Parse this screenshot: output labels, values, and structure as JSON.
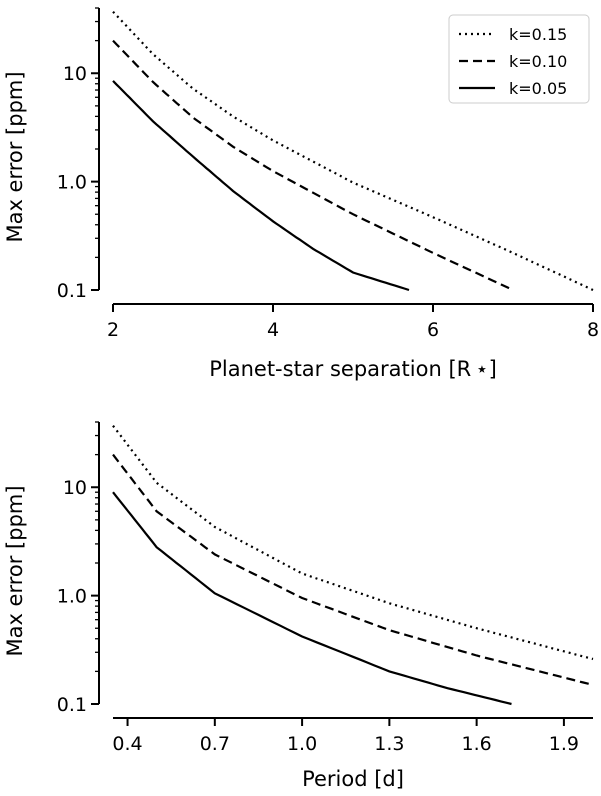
{
  "chart_data": [
    {
      "type": "line",
      "xlabel": "Planet-star separation [R ⋆]",
      "ylabel": "Max error [ppm]",
      "yscale": "log",
      "xlim": [
        2,
        8
      ],
      "ylim": [
        0.1,
        40
      ],
      "xticks": [
        "2",
        "4",
        "6",
        "8"
      ],
      "yticks": [
        "0.1",
        "1.0",
        "10"
      ],
      "legend": "top-right",
      "series": [
        {
          "name": "k=0.15",
          "style": "dotted",
          "x": [
            2,
            2.5,
            3,
            3.5,
            4,
            5,
            6,
            7,
            8
          ],
          "y": [
            37,
            15,
            7.2,
            4.0,
            2.4,
            0.98,
            0.47,
            0.22,
            0.1
          ]
        },
        {
          "name": "k=0.10",
          "style": "dashed",
          "x": [
            2,
            2.5,
            3,
            3.5,
            4,
            5,
            6,
            7
          ],
          "y": [
            20,
            8.3,
            3.9,
            2.1,
            1.25,
            0.5,
            0.22,
            0.1
          ]
        },
        {
          "name": "k=0.05",
          "style": "solid",
          "x": [
            2,
            2.5,
            3,
            3.5,
            4,
            4.5,
            5,
            5.7
          ],
          "y": [
            8.5,
            3.6,
            1.7,
            0.82,
            0.43,
            0.24,
            0.145,
            0.1
          ]
        }
      ]
    },
    {
      "type": "line",
      "xlabel": "Period [d]",
      "ylabel": "Max error [ppm]",
      "yscale": "log",
      "xlim": [
        0.35,
        2.0
      ],
      "ylim": [
        0.1,
        40
      ],
      "xticks": [
        "0.4",
        "0.7",
        "1.0",
        "1.3",
        "1.6",
        "1.9"
      ],
      "yticks": [
        "0.1",
        "1.0",
        "10"
      ],
      "series": [
        {
          "name": "k=0.15",
          "style": "dotted",
          "x": [
            0.35,
            0.5,
            0.7,
            1.0,
            1.3,
            1.6,
            2.0
          ],
          "y": [
            37,
            11,
            4.3,
            1.6,
            0.85,
            0.5,
            0.26
          ]
        },
        {
          "name": "k=0.10",
          "style": "dashed",
          "x": [
            0.35,
            0.5,
            0.7,
            1.0,
            1.3,
            1.6,
            2.0
          ],
          "y": [
            20,
            6.0,
            2.4,
            0.95,
            0.48,
            0.28,
            0.15
          ]
        },
        {
          "name": "k=0.05",
          "style": "solid",
          "x": [
            0.35,
            0.5,
            0.7,
            1.0,
            1.3,
            1.5,
            1.72
          ],
          "y": [
            9.0,
            2.8,
            1.05,
            0.42,
            0.2,
            0.14,
            0.1
          ]
        }
      ]
    }
  ]
}
